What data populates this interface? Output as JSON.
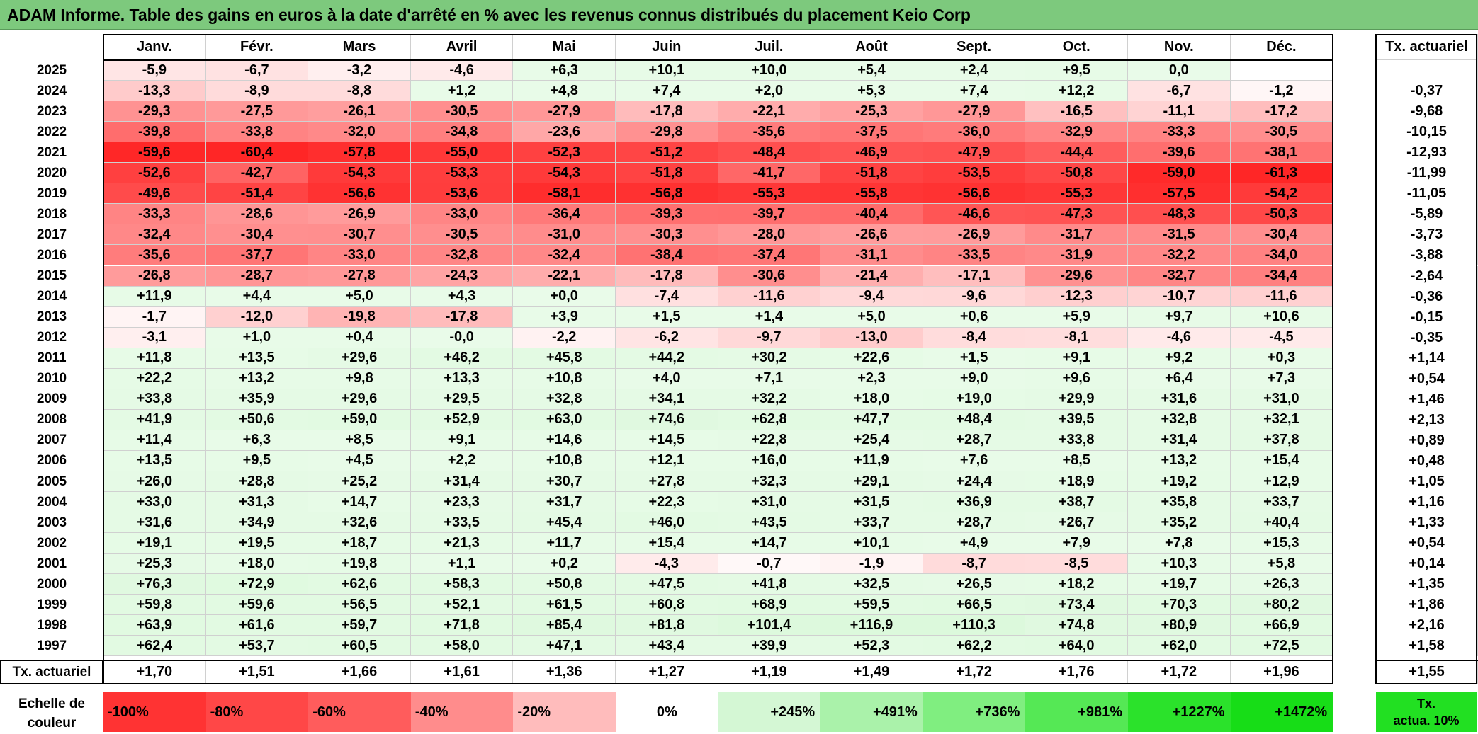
{
  "title": "ADAM Informe. Table des gains en euros à la date d'arrêté en % avec les revenus connus distribués du placement Keio Corp",
  "months": [
    "Janv.",
    "Févr.",
    "Mars",
    "Avril",
    "Mai",
    "Juin",
    "Juil.",
    "Août",
    "Sept.",
    "Oct.",
    "Nov.",
    "Déc."
  ],
  "tx_header": "Tx. actuariel",
  "rows": [
    {
      "year": "2025",
      "values": [
        "-5,9",
        "-6,7",
        "-3,2",
        "-4,6",
        "+6,3",
        "+10,1",
        "+10,0",
        "+5,4",
        "+2,4",
        "+9,5",
        "0,0",
        ""
      ],
      "tx": ""
    },
    {
      "year": "2024",
      "values": [
        "-13,3",
        "-8,9",
        "-8,8",
        "+1,2",
        "+4,8",
        "+7,4",
        "+2,0",
        "+5,3",
        "+7,4",
        "+12,2",
        "-6,7",
        "-1,2"
      ],
      "tx": "-0,37"
    },
    {
      "year": "2023",
      "values": [
        "-29,3",
        "-27,5",
        "-26,1",
        "-30,5",
        "-27,9",
        "-17,8",
        "-22,1",
        "-25,3",
        "-27,9",
        "-16,5",
        "-11,1",
        "-17,2"
      ],
      "tx": "-9,68"
    },
    {
      "year": "2022",
      "values": [
        "-39,8",
        "-33,8",
        "-32,0",
        "-34,8",
        "-23,6",
        "-29,8",
        "-35,6",
        "-37,5",
        "-36,0",
        "-32,9",
        "-33,3",
        "-30,5"
      ],
      "tx": "-10,15"
    },
    {
      "year": "2021",
      "values": [
        "-59,6",
        "-60,4",
        "-57,8",
        "-55,0",
        "-52,3",
        "-51,2",
        "-48,4",
        "-46,9",
        "-47,9",
        "-44,4",
        "-39,6",
        "-38,1"
      ],
      "tx": "-12,93"
    },
    {
      "year": "2020",
      "values": [
        "-52,6",
        "-42,7",
        "-54,3",
        "-53,3",
        "-54,3",
        "-51,8",
        "-41,7",
        "-51,8",
        "-53,5",
        "-50,8",
        "-59,0",
        "-61,3"
      ],
      "tx": "-11,99"
    },
    {
      "year": "2019",
      "values": [
        "-49,6",
        "-51,4",
        "-56,6",
        "-53,6",
        "-58,1",
        "-56,8",
        "-55,3",
        "-55,8",
        "-56,6",
        "-55,3",
        "-57,5",
        "-54,2"
      ],
      "tx": "-11,05"
    },
    {
      "year": "2018",
      "values": [
        "-33,3",
        "-28,6",
        "-26,9",
        "-33,0",
        "-36,4",
        "-39,3",
        "-39,7",
        "-40,4",
        "-46,6",
        "-47,3",
        "-48,3",
        "-50,3"
      ],
      "tx": "-5,89"
    },
    {
      "year": "2017",
      "values": [
        "-32,4",
        "-30,4",
        "-30,7",
        "-30,5",
        "-31,0",
        "-30,3",
        "-28,0",
        "-26,6",
        "-26,9",
        "-31,7",
        "-31,5",
        "-30,4"
      ],
      "tx": "-3,73"
    },
    {
      "year": "2016",
      "values": [
        "-35,6",
        "-37,7",
        "-33,0",
        "-32,8",
        "-32,4",
        "-38,4",
        "-37,4",
        "-31,1",
        "-33,5",
        "-31,9",
        "-32,2",
        "-34,0"
      ],
      "tx": "-3,88"
    },
    {
      "year": "2015",
      "values": [
        "-26,8",
        "-28,7",
        "-27,8",
        "-24,3",
        "-22,1",
        "-17,8",
        "-30,6",
        "-21,4",
        "-17,1",
        "-29,6",
        "-32,7",
        "-34,4"
      ],
      "tx": "-2,64"
    },
    {
      "year": "2014",
      "values": [
        "+11,9",
        "+4,4",
        "+5,0",
        "+4,3",
        "+0,0",
        "-7,4",
        "-11,6",
        "-9,4",
        "-9,6",
        "-12,3",
        "-10,7",
        "-11,6"
      ],
      "tx": "-0,36"
    },
    {
      "year": "2013",
      "values": [
        "-1,7",
        "-12,0",
        "-19,8",
        "-17,8",
        "+3,9",
        "+1,5",
        "+1,4",
        "+5,0",
        "+0,6",
        "+5,9",
        "+9,7",
        "+10,6"
      ],
      "tx": "-0,15"
    },
    {
      "year": "2012",
      "values": [
        "-3,1",
        "+1,0",
        "+0,4",
        "-0,0",
        "-2,2",
        "-6,2",
        "-9,7",
        "-13,0",
        "-8,4",
        "-8,1",
        "-4,6",
        "-4,5"
      ],
      "tx": "-0,35"
    },
    {
      "year": "2011",
      "values": [
        "+11,8",
        "+13,5",
        "+29,6",
        "+46,2",
        "+45,8",
        "+44,2",
        "+30,2",
        "+22,6",
        "+1,5",
        "+9,1",
        "+9,2",
        "+0,3"
      ],
      "tx": "+1,14"
    },
    {
      "year": "2010",
      "values": [
        "+22,2",
        "+13,2",
        "+9,8",
        "+13,3",
        "+10,8",
        "+4,0",
        "+7,1",
        "+2,3",
        "+9,0",
        "+9,6",
        "+6,4",
        "+7,3"
      ],
      "tx": "+0,54"
    },
    {
      "year": "2009",
      "values": [
        "+33,8",
        "+35,9",
        "+29,6",
        "+29,5",
        "+32,8",
        "+34,1",
        "+32,2",
        "+18,0",
        "+19,0",
        "+29,9",
        "+31,6",
        "+31,0"
      ],
      "tx": "+1,46"
    },
    {
      "year": "2008",
      "values": [
        "+41,9",
        "+50,6",
        "+59,0",
        "+52,9",
        "+63,0",
        "+74,6",
        "+62,8",
        "+47,7",
        "+48,4",
        "+39,5",
        "+32,8",
        "+32,1"
      ],
      "tx": "+2,13"
    },
    {
      "year": "2007",
      "values": [
        "+11,4",
        "+6,3",
        "+8,5",
        "+9,1",
        "+14,6",
        "+14,5",
        "+22,8",
        "+25,4",
        "+28,7",
        "+33,8",
        "+31,4",
        "+37,8"
      ],
      "tx": "+0,89"
    },
    {
      "year": "2006",
      "values": [
        "+13,5",
        "+9,5",
        "+4,5",
        "+2,2",
        "+10,8",
        "+12,1",
        "+16,0",
        "+11,9",
        "+7,6",
        "+8,5",
        "+13,2",
        "+15,4"
      ],
      "tx": "+0,48"
    },
    {
      "year": "2005",
      "values": [
        "+26,0",
        "+28,8",
        "+25,2",
        "+31,4",
        "+30,7",
        "+27,8",
        "+32,3",
        "+29,1",
        "+24,4",
        "+18,9",
        "+19,2",
        "+12,9"
      ],
      "tx": "+1,05"
    },
    {
      "year": "2004",
      "values": [
        "+33,0",
        "+31,3",
        "+14,7",
        "+23,3",
        "+31,7",
        "+22,3",
        "+31,0",
        "+31,5",
        "+36,9",
        "+38,7",
        "+35,8",
        "+33,7"
      ],
      "tx": "+1,16"
    },
    {
      "year": "2003",
      "values": [
        "+31,6",
        "+34,9",
        "+32,6",
        "+33,5",
        "+45,4",
        "+46,0",
        "+43,5",
        "+33,7",
        "+28,7",
        "+26,7",
        "+35,2",
        "+40,4"
      ],
      "tx": "+1,33"
    },
    {
      "year": "2002",
      "values": [
        "+19,1",
        "+19,5",
        "+18,7",
        "+21,3",
        "+11,7",
        "+15,4",
        "+14,7",
        "+10,1",
        "+4,9",
        "+7,9",
        "+7,8",
        "+15,3"
      ],
      "tx": "+0,54"
    },
    {
      "year": "2001",
      "values": [
        "+25,3",
        "+18,0",
        "+19,8",
        "+1,1",
        "+0,2",
        "-4,3",
        "-0,7",
        "-1,9",
        "-8,7",
        "-8,5",
        "+10,3",
        "+5,8"
      ],
      "tx": "+0,14"
    },
    {
      "year": "2000",
      "values": [
        "+76,3",
        "+72,9",
        "+62,6",
        "+58,3",
        "+50,8",
        "+47,5",
        "+41,8",
        "+32,5",
        "+26,5",
        "+18,2",
        "+19,7",
        "+26,3"
      ],
      "tx": "+1,35"
    },
    {
      "year": "1999",
      "values": [
        "+59,8",
        "+59,6",
        "+56,5",
        "+52,1",
        "+61,5",
        "+60,8",
        "+68,9",
        "+59,5",
        "+66,5",
        "+73,4",
        "+70,3",
        "+80,2"
      ],
      "tx": "+1,86"
    },
    {
      "year": "1998",
      "values": [
        "+63,9",
        "+61,6",
        "+59,7",
        "+71,8",
        "+85,4",
        "+81,8",
        "+101,4",
        "+116,9",
        "+110,3",
        "+74,8",
        "+80,9",
        "+66,9"
      ],
      "tx": "+2,16"
    },
    {
      "year": "1997",
      "values": [
        "+62,4",
        "+53,7",
        "+60,5",
        "+58,0",
        "+47,1",
        "+43,4",
        "+39,9",
        "+52,3",
        "+62,2",
        "+64,0",
        "+62,0",
        "+72,5"
      ],
      "tx": "+1,58"
    }
  ],
  "footer": {
    "label": "Tx. actuariel",
    "values": [
      "+1,70",
      "+1,51",
      "+1,66",
      "+1,61",
      "+1,36",
      "+1,27",
      "+1,19",
      "+1,49",
      "+1,72",
      "+1,76",
      "+1,72",
      "+1,96"
    ],
    "tx": "+1,55"
  },
  "scale": {
    "label_line1": "Echelle de",
    "label_line2": "couleur",
    "items": [
      {
        "text": "-100%",
        "color": "#ff3333",
        "align": "left"
      },
      {
        "text": "-80%",
        "color": "#ff4747",
        "align": "left"
      },
      {
        "text": "-60%",
        "color": "#ff5c5c",
        "align": "left"
      },
      {
        "text": "-40%",
        "color": "#ff8c8c",
        "align": "left"
      },
      {
        "text": "-20%",
        "color": "#ffbcbc",
        "align": "left"
      },
      {
        "text": "0%",
        "color": "#ffffff",
        "align": "center"
      },
      {
        "text": "+245%",
        "color": "#d4f7d4",
        "align": "right"
      },
      {
        "text": "+491%",
        "color": "#aaf2aa",
        "align": "right"
      },
      {
        "text": "+736%",
        "color": "#80ee80",
        "align": "right"
      },
      {
        "text": "+981%",
        "color": "#55e855",
        "align": "right"
      },
      {
        "text": "+1227%",
        "color": "#2be22b",
        "align": "right"
      },
      {
        "text": "+1472%",
        "color": "#17dd17",
        "align": "right"
      }
    ],
    "green_label_line1": "Tx.",
    "green_label_line2": "actua. 10%",
    "green_color": "#22e022"
  }
}
